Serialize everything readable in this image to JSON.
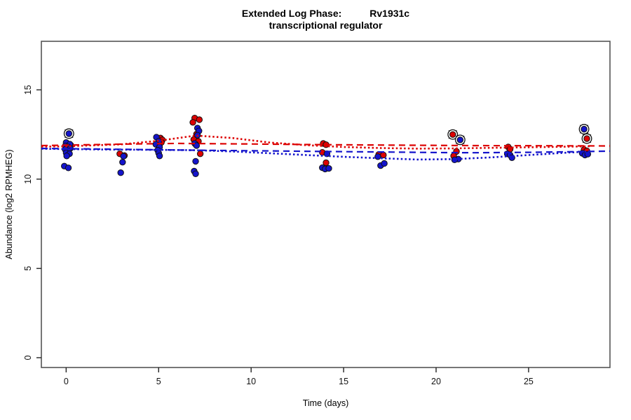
{
  "header": {
    "title_left": "Extended Log Phase:",
    "title_gene": "Rv1931c",
    "subtitle": "transcriptional regulator"
  },
  "chart_data": {
    "type": "scatter",
    "title": "Extended Log Phase: Rv1931c transcriptional regulator",
    "xlabel": "Time  (days)",
    "ylabel": "Abundance  (log2 RPMHEG)",
    "xlim": [
      -1.34,
      29.4
    ],
    "ylim": [
      -0.55,
      17.72
    ],
    "x_ticks": [
      0,
      5,
      10,
      15,
      20,
      25
    ],
    "y_ticks": [
      0,
      5,
      10,
      15
    ],
    "grid": false,
    "legend": "none",
    "colors": {
      "red_series": "#dd0202",
      "blue_series": "#1414cc",
      "point_stroke": "#111111",
      "box_stroke": "#555555"
    },
    "series": [
      {
        "name": "red-points",
        "color": "#dd0202",
        "marker": "filled-circle",
        "points": [
          [
            0.25,
            11.9
          ],
          [
            2.9,
            11.42
          ],
          [
            3.15,
            11.32
          ],
          [
            5.1,
            12.3
          ],
          [
            5.2,
            12.2
          ],
          [
            5.15,
            12.06
          ],
          [
            5.0,
            11.92
          ],
          [
            6.95,
            13.42
          ],
          [
            7.2,
            13.33
          ],
          [
            6.85,
            13.18
          ],
          [
            7.05,
            12.52
          ],
          [
            6.9,
            12.22
          ],
          [
            7.15,
            12.12
          ],
          [
            7.0,
            11.95
          ],
          [
            7.25,
            11.42
          ],
          [
            13.9,
            12.0
          ],
          [
            14.05,
            11.93
          ],
          [
            13.85,
            11.5
          ],
          [
            14.05,
            10.92
          ],
          [
            16.9,
            11.38
          ],
          [
            17.15,
            11.35
          ],
          [
            21.1,
            11.55
          ],
          [
            20.95,
            11.3
          ],
          [
            23.9,
            11.8
          ],
          [
            24.0,
            11.68
          ],
          [
            28.0,
            11.65
          ],
          [
            28.15,
            11.58
          ]
        ]
      },
      {
        "name": "blue-points",
        "color": "#1414cc",
        "marker": "filled-circle",
        "points": [
          [
            0.0,
            12.05
          ],
          [
            0.2,
            11.96
          ],
          [
            -0.05,
            11.86
          ],
          [
            0.1,
            11.8
          ],
          [
            0.22,
            11.72
          ],
          [
            -0.05,
            11.66
          ],
          [
            0.12,
            11.58
          ],
          [
            0.0,
            11.47
          ],
          [
            0.18,
            11.42
          ],
          [
            0.03,
            11.3
          ],
          [
            -0.1,
            10.73
          ],
          [
            0.12,
            10.63
          ],
          [
            3.1,
            11.28
          ],
          [
            3.05,
            10.95
          ],
          [
            2.95,
            10.36
          ],
          [
            4.88,
            12.35
          ],
          [
            5.0,
            12.12
          ],
          [
            4.85,
            11.95
          ],
          [
            5.05,
            11.8
          ],
          [
            4.95,
            11.62
          ],
          [
            5.0,
            11.46
          ],
          [
            5.05,
            11.3
          ],
          [
            7.1,
            12.86
          ],
          [
            7.18,
            12.7
          ],
          [
            7.1,
            12.46
          ],
          [
            6.95,
            12.0
          ],
          [
            7.05,
            11.88
          ],
          [
            7.0,
            11.0
          ],
          [
            6.92,
            10.45
          ],
          [
            7.0,
            10.3
          ],
          [
            14.1,
            11.42
          ],
          [
            13.85,
            10.64
          ],
          [
            14.0,
            10.57
          ],
          [
            14.2,
            10.6
          ],
          [
            16.85,
            11.26
          ],
          [
            17.0,
            10.76
          ],
          [
            17.2,
            10.88
          ],
          [
            21.2,
            11.12
          ],
          [
            21.0,
            11.08
          ],
          [
            23.85,
            11.42
          ],
          [
            24.0,
            11.35
          ],
          [
            24.1,
            11.2
          ],
          [
            27.9,
            11.45
          ],
          [
            28.05,
            11.35
          ],
          [
            28.2,
            11.4
          ]
        ]
      },
      {
        "name": "red-circled-outliers",
        "color": "#dd0202",
        "marker": "circle-cross",
        "points": [
          [
            20.9,
            12.5
          ],
          [
            28.15,
            12.27
          ]
        ]
      },
      {
        "name": "blue-circled-outliers",
        "color": "#1414cc",
        "marker": "circle-cross",
        "points": [
          [
            0.15,
            12.55
          ],
          [
            21.3,
            12.2
          ],
          [
            28.0,
            12.8
          ]
        ]
      }
    ],
    "trend_lines": [
      {
        "name": "red-dashed-fit",
        "color": "#dd0202",
        "style": "dashed",
        "points": [
          [
            -1.34,
            11.88
          ],
          [
            3,
            11.96
          ],
          [
            6,
            12.0
          ],
          [
            10,
            11.97
          ],
          [
            14,
            11.93
          ],
          [
            18,
            11.9
          ],
          [
            22,
            11.88
          ],
          [
            26,
            11.87
          ],
          [
            29.4,
            11.86
          ]
        ]
      },
      {
        "name": "red-dotted-fit",
        "color": "#dd0202",
        "style": "dotted",
        "points": [
          [
            -1.34,
            11.82
          ],
          [
            0,
            11.84
          ],
          [
            3,
            11.95
          ],
          [
            5,
            12.15
          ],
          [
            7,
            12.44
          ],
          [
            9,
            12.3
          ],
          [
            11,
            12.05
          ],
          [
            13,
            11.9
          ],
          [
            15,
            11.8
          ],
          [
            17,
            11.74
          ],
          [
            19,
            11.71
          ],
          [
            21,
            11.72
          ],
          [
            24,
            11.77
          ],
          [
            26,
            11.8
          ],
          [
            28.3,
            11.84
          ]
        ]
      },
      {
        "name": "blue-dashed-fit",
        "color": "#1414cc",
        "style": "dashed",
        "points": [
          [
            -1.34,
            11.72
          ],
          [
            3,
            11.67
          ],
          [
            7,
            11.62
          ],
          [
            11,
            11.58
          ],
          [
            14,
            11.55
          ],
          [
            17,
            11.52
          ],
          [
            20,
            11.49
          ],
          [
            22,
            11.48
          ],
          [
            25,
            11.5
          ],
          [
            27,
            11.53
          ],
          [
            29.4,
            11.57
          ]
        ]
      },
      {
        "name": "blue-dotted-fit",
        "color": "#1414cc",
        "style": "dotted",
        "points": [
          [
            -1.34,
            11.7
          ],
          [
            2,
            11.66
          ],
          [
            5,
            11.64
          ],
          [
            7,
            11.62
          ],
          [
            9,
            11.55
          ],
          [
            11,
            11.45
          ],
          [
            13,
            11.35
          ],
          [
            15,
            11.25
          ],
          [
            17,
            11.17
          ],
          [
            19,
            11.1
          ],
          [
            21,
            11.12
          ],
          [
            23,
            11.22
          ],
          [
            25,
            11.35
          ],
          [
            27,
            11.48
          ],
          [
            28.3,
            11.55
          ]
        ]
      }
    ]
  }
}
